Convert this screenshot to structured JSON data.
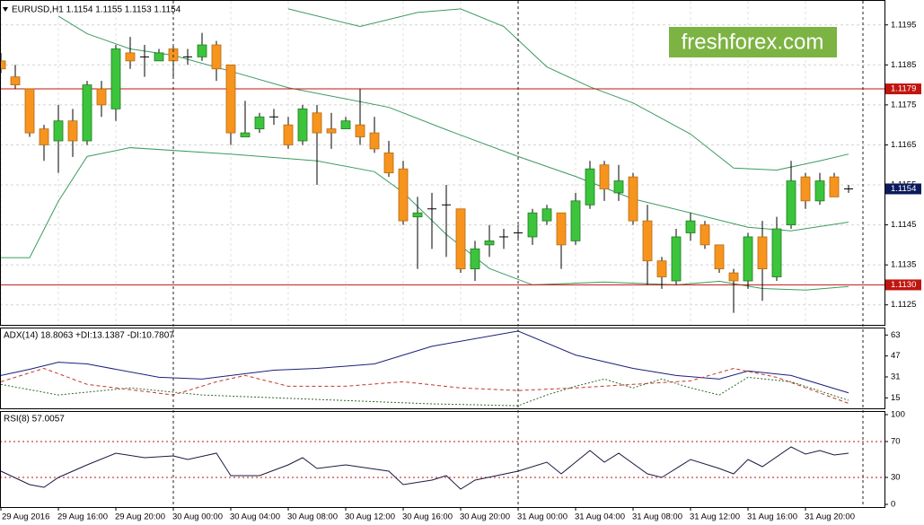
{
  "chart_data": {
    "type": "candlestick",
    "title": "EURUSD,H1  1.1154 1.1155 1.1153 1.1154",
    "watermark": "freshforex.com",
    "categories": [
      "29 Aug 2016",
      null,
      null,
      null,
      "29 Aug 16:00",
      null,
      null,
      null,
      "29 Aug 20:00",
      null,
      null,
      null,
      "30 Aug 00:00",
      null,
      null,
      null,
      "30 Aug 04:00",
      null,
      null,
      null,
      "30 Aug 08:00",
      null,
      null,
      null,
      "30 Aug 12:00",
      null,
      null,
      null,
      "30 Aug 16:00",
      null,
      null,
      null,
      "30 Aug 20:00",
      null,
      null,
      null,
      "31 Aug 00:00",
      null,
      null,
      null,
      "31 Aug 04:00",
      null,
      null,
      null,
      "31 Aug 08:00",
      null,
      null,
      null,
      "31 Aug 12:00",
      null,
      null,
      null,
      "31 Aug 16:00",
      null,
      null,
      null,
      "31 Aug 20:00",
      null,
      null,
      null
    ],
    "open": [
      1.1186,
      1.1182,
      1.1179,
      1.1169,
      1.1166,
      1.1171,
      1.1166,
      1.1179,
      1.1174,
      1.1188,
      1.1187,
      1.1186,
      1.1189,
      1.1187,
      1.1187,
      1.119,
      1.1185,
      1.1167,
      1.1169,
      1.1172,
      1.117,
      1.1166,
      1.1173,
      1.1169,
      1.1169,
      1.117,
      1.1168,
      1.1163,
      1.1159,
      1.1147,
      1.1149,
      1.115,
      1.1149,
      1.1134,
      1.114,
      1.1142,
      1.1143,
      1.1142,
      1.1146,
      1.1148,
      1.1141,
      1.115,
      1.116,
      1.1153,
      1.1157,
      1.1146,
      1.1136,
      1.1131,
      1.1143,
      1.1145,
      1.114,
      1.1133,
      1.1131,
      1.1142,
      1.1132,
      1.1145,
      1.1157,
      1.1151,
      1.1157,
      1.1154
    ],
    "high": [
      1.1188,
      1.1185,
      1.1179,
      1.117,
      1.1175,
      1.1174,
      1.1181,
      1.1181,
      1.119,
      1.1192,
      1.119,
      1.1189,
      1.119,
      1.1189,
      1.1193,
      1.1191,
      1.1185,
      1.1176,
      1.1173,
      1.1174,
      1.1172,
      1.1175,
      1.1175,
      1.1173,
      1.1172,
      1.1179,
      1.1172,
      1.1166,
      1.1161,
      1.1152,
      1.1153,
      1.1155,
      1.1149,
      1.1141,
      1.1145,
      1.1144,
      1.1145,
      1.1149,
      1.115,
      1.1148,
      1.1153,
      1.1161,
      1.1161,
      1.116,
      1.1158,
      1.115,
      1.1137,
      1.1144,
      1.1148,
      1.1146,
      1.114,
      1.1134,
      1.1143,
      1.1146,
      1.1147,
      1.1161,
      1.1158,
      1.1158,
      1.1158,
      1.1155
    ],
    "low": [
      1.1183,
      1.1179,
      1.1167,
      1.1161,
      1.1158,
      1.1162,
      1.1165,
      1.1172,
      1.1171,
      1.1184,
      1.1182,
      1.1186,
      1.1182,
      1.1185,
      1.1186,
      1.1181,
      1.1165,
      1.1167,
      1.1168,
      1.117,
      1.1164,
      1.1165,
      1.1155,
      1.1164,
      1.1169,
      1.1165,
      1.1163,
      1.1157,
      1.1145,
      1.1134,
      1.1139,
      1.1137,
      1.1133,
      1.1131,
      1.1137,
      1.1139,
      1.1141,
      1.114,
      1.1145,
      1.1134,
      1.114,
      1.1149,
      1.1151,
      1.1151,
      1.1145,
      1.113,
      1.1129,
      1.113,
      1.1141,
      1.1139,
      1.1133,
      1.1123,
      1.1129,
      1.1126,
      1.1131,
      1.1144,
      1.1149,
      1.115,
      1.1152,
      1.1153
    ],
    "close": [
      1.1184,
      1.118,
      1.1168,
      1.1165,
      1.1171,
      1.1166,
      1.118,
      1.1175,
      1.1189,
      1.1186,
      1.1187,
      1.1188,
      1.1186,
      1.1187,
      1.119,
      1.1184,
      1.1168,
      1.1168,
      1.1172,
      1.1172,
      1.1165,
      1.1174,
      1.1168,
      1.1168,
      1.1171,
      1.1167,
      1.1164,
      1.1158,
      1.1146,
      1.1148,
      1.1149,
      1.115,
      1.1134,
      1.1139,
      1.1141,
      1.1142,
      1.1143,
      1.1148,
      1.1149,
      1.114,
      1.1151,
      1.1159,
      1.1154,
      1.1156,
      1.1146,
      1.1136,
      1.1132,
      1.1142,
      1.1146,
      1.114,
      1.1134,
      1.1131,
      1.1142,
      1.1134,
      1.1144,
      1.1156,
      1.1151,
      1.1156,
      1.1152,
      1.1154
    ],
    "up_color": "#3cc43c",
    "down_color": "#f7941d",
    "bands": [
      {
        "color": "#3d9a62",
        "x": [
          20,
          25,
          29,
          32,
          35,
          38,
          41,
          44,
          48,
          51,
          54,
          57,
          59
        ],
        "values": [
          1.1199,
          1.11946,
          1.11981,
          1.1199,
          1.11946,
          1.11845,
          1.11795,
          1.11755,
          1.11677,
          1.11592,
          1.11587,
          1.1161,
          1.11627
        ]
      },
      {
        "color": "#3d9a62",
        "x": [
          4,
          6,
          9,
          12,
          16,
          20,
          27,
          31,
          36,
          40,
          44,
          48,
          52,
          55,
          59
        ],
        "values": [
          1.11972,
          1.11928,
          1.1189,
          1.11874,
          1.11834,
          1.11793,
          1.11744,
          1.11688,
          1.11621,
          1.11571,
          1.11515,
          1.1148,
          1.11444,
          1.11435,
          1.11457
        ]
      },
      {
        "color": "#3d9a62",
        "x": [
          0,
          2,
          4,
          6,
          9,
          16,
          22,
          26,
          28,
          31,
          34,
          37,
          42,
          47,
          50,
          53,
          56,
          59
        ],
        "values": [
          1.11368,
          1.11368,
          1.11509,
          1.11621,
          1.11643,
          1.11627,
          1.1161,
          1.11583,
          1.11531,
          1.11426,
          1.11341,
          1.113,
          1.11307,
          1.113,
          1.11309,
          1.11291,
          1.11287,
          1.11296
        ]
      }
    ],
    "levels": [
      {
        "value": 1.1179,
        "label": "1.1179"
      },
      {
        "value": 1.113,
        "label": "1.1130"
      }
    ],
    "level_color": "#c0150f",
    "current_price": 1.1154,
    "ylim": [
      1.112,
      1.1201
    ],
    "yticks": [
      1.1195,
      1.1185,
      1.1175,
      1.1165,
      1.1155,
      1.1145,
      1.1135,
      1.1125
    ],
    "grid": true,
    "indicators": [
      {
        "type": "line",
        "title": "ADX(14) 18.8063 +DI:13.1387 -DI:10.7807",
        "ylim": [
          7,
          68
        ],
        "yticks": [
          63,
          47,
          31,
          15
        ],
        "series": [
          {
            "color": "#1b1f7a",
            "style": "solid",
            "x": [
              0,
              2,
              4,
              6,
              11,
              14,
              19,
              22,
              26,
              30,
              36,
              40,
              44,
              47,
              50,
              52,
              55,
              59
            ],
            "values": [
              32.1,
              36.8,
              42.2,
              40.9,
              30.7,
              29.4,
              36.1,
              37.5,
              40.9,
              54.4,
              66.0,
              47.7,
              37.5,
              32.1,
              29.4,
              35.5,
              32.1,
              18.8063
            ]
          },
          {
            "color": "#2e6b2e",
            "style": "dotted",
            "x": [
              0,
              4,
              9,
              14,
              22,
              30,
              36,
              38,
              40,
              42,
              44,
              46,
              48,
              50,
              52,
              55,
              59
            ],
            "values": [
              25.3,
              17.2,
              22.6,
              17.2,
              13.8,
              10.4,
              9.0,
              17.2,
              23.9,
              29.4,
              22.6,
              29.4,
              22.6,
              17.2,
              30.7,
              27.3,
              13.1387
            ]
          },
          {
            "color": "#c0392b",
            "style": "dashed",
            "x": [
              0,
              3,
              6,
              12,
              15,
              17,
              20,
              24,
              28,
              32,
              36,
              40,
              44,
              48,
              51,
              54,
              59
            ],
            "values": [
              27.3,
              37.5,
              25.3,
              17.2,
              27.3,
              32.1,
              23.9,
              23.9,
              27.3,
              22.6,
              20.6,
              22.6,
              25.3,
              28.0,
              37.5,
              30.7,
              10.7807
            ]
          }
        ]
      },
      {
        "type": "line",
        "title": "RSI(8) 57.0057",
        "ylim": [
          -3,
          103
        ],
        "yticks": [
          100,
          70,
          30,
          0
        ],
        "levels": [
          70,
          30
        ],
        "level_color": "#c0150f",
        "series": [
          {
            "color": "#1a1a40",
            "style": "solid",
            "x": [
              0,
              2,
              3,
              4,
              6,
              8,
              10,
              12,
              13,
              15,
              16,
              18,
              20,
              21,
              22,
              24,
              27,
              28,
              30,
              31,
              32,
              33,
              36,
              38,
              39,
              41,
              42,
              43,
              45,
              46,
              48,
              50,
              51,
              52,
              53,
              55,
              56,
              57,
              58,
              59
            ],
            "values": [
              37,
              22,
              19,
              30,
              44,
              57,
              52,
              54,
              50,
              57,
              32,
              32,
              44,
              52,
              40,
              44,
              37,
              22,
              27,
              32,
              17,
              27,
              37,
              47,
              34,
              60,
              47,
              57,
              34,
              30,
              50,
              40,
              34,
              50,
              42,
              64,
              56,
              60,
              55,
              57.0057
            ]
          }
        ]
      }
    ]
  }
}
